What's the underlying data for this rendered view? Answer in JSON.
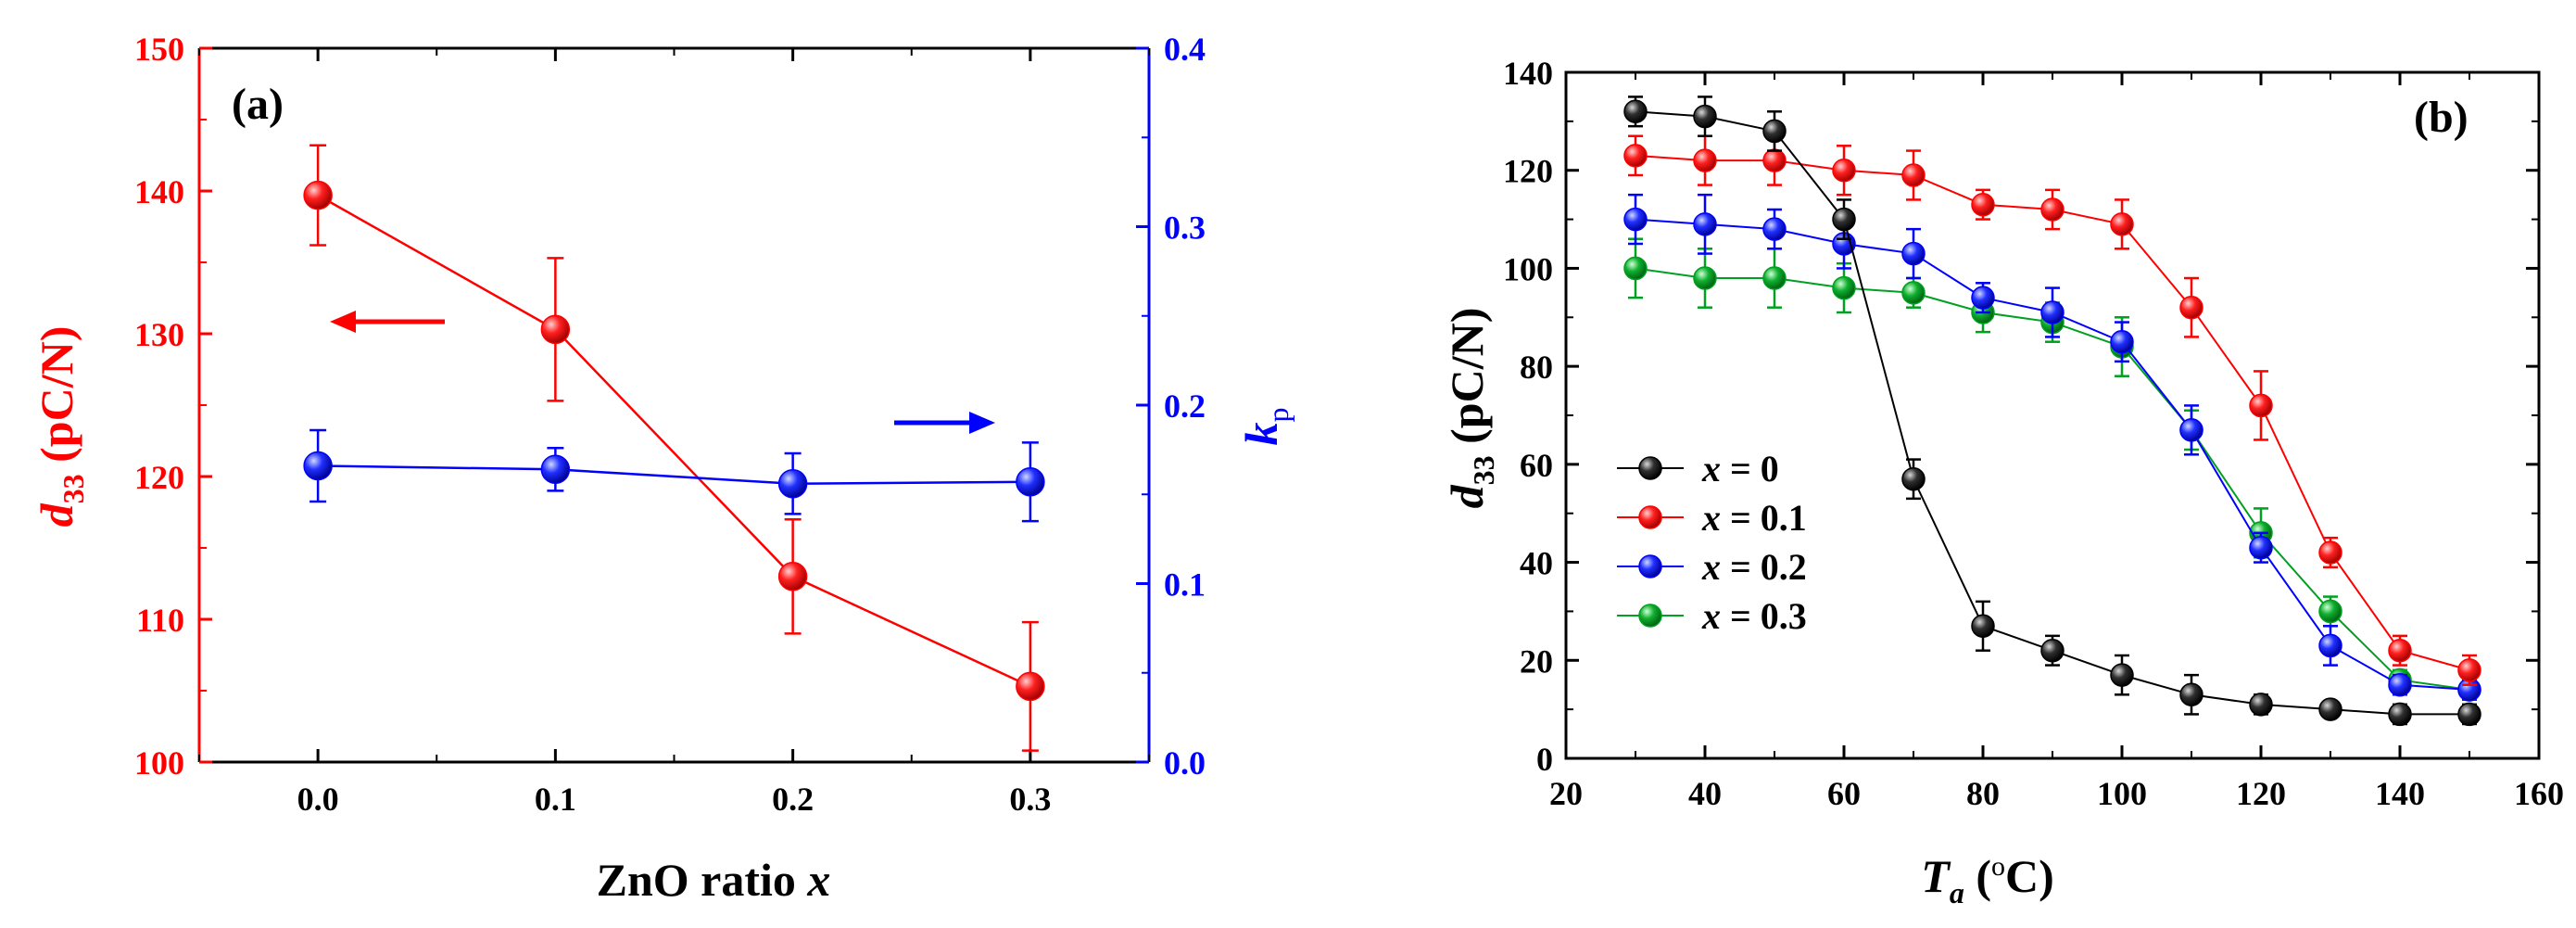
{
  "chart_data": [
    {
      "type": "line",
      "panel_label": "(a)",
      "xlabel": "ZnO ratio x",
      "xlabel_parts": [
        "ZnO ratio ",
        "x"
      ],
      "ylabel_left_parts": [
        "d",
        "33",
        " (pC/N)"
      ],
      "ylabel_right_parts": [
        "k",
        "p"
      ],
      "xlim": [
        -0.05,
        0.35
      ],
      "ylim_left": [
        100,
        150
      ],
      "ylim_right": [
        0.0,
        0.4
      ],
      "x_ticks": [
        "0.0",
        "0.1",
        "0.2",
        "0.3"
      ],
      "x_tick_values": [
        0.0,
        0.1,
        0.2,
        0.3
      ],
      "y_left_ticks": [
        "100",
        "110",
        "120",
        "130",
        "140",
        "150"
      ],
      "y_left_tick_values": [
        100,
        110,
        120,
        130,
        140,
        150
      ],
      "y_right_ticks": [
        "0.0",
        "0.1",
        "0.2",
        "0.3",
        "0.4"
      ],
      "y_right_tick_values": [
        0.0,
        0.1,
        0.2,
        0.3,
        0.4
      ],
      "grid": false,
      "series": [
        {
          "name": "d33",
          "axis": "left",
          "color": "#ff0000",
          "x": [
            0.0,
            0.1,
            0.2,
            0.3
          ],
          "values": [
            139.7,
            130.3,
            113.0,
            105.3
          ],
          "errors": [
            3.5,
            5.0,
            4.0,
            4.5
          ]
        },
        {
          "name": "kp",
          "axis": "right",
          "color": "#0000ff",
          "x": [
            0.0,
            0.1,
            0.2,
            0.3
          ],
          "values": [
            0.166,
            0.164,
            0.156,
            0.157
          ],
          "errors": [
            0.02,
            0.012,
            0.017,
            0.022
          ]
        }
      ],
      "annotations": [
        {
          "type": "arrow",
          "direction": "left",
          "color": "#ff0000",
          "x_from": 0.07,
          "x_to": 0.03,
          "y": 130,
          "axis": "left"
        },
        {
          "type": "arrow",
          "direction": "right",
          "color": "#0000ff",
          "x_from": 0.24,
          "x_to": 0.28,
          "y": 0.19,
          "axis": "right"
        }
      ]
    },
    {
      "type": "line",
      "panel_label": "(b)",
      "xlabel_parts": [
        "T",
        "a",
        " (",
        "o",
        "C)"
      ],
      "ylabel_parts": [
        "d",
        "33",
        " (pC/N)"
      ],
      "xlim": [
        20,
        160
      ],
      "ylim": [
        0,
        140
      ],
      "x_ticks": [
        "20",
        "40",
        "60",
        "80",
        "100",
        "120",
        "140",
        "160"
      ],
      "x_tick_values": [
        20,
        40,
        60,
        80,
        100,
        120,
        140,
        160
      ],
      "y_ticks": [
        "0",
        "20",
        "40",
        "60",
        "80",
        "100",
        "120",
        "140"
      ],
      "y_tick_values": [
        0,
        20,
        40,
        60,
        80,
        100,
        120,
        140
      ],
      "grid": false,
      "legend_position": "left-lower",
      "x": [
        30,
        40,
        50,
        60,
        70,
        80,
        90,
        100,
        110,
        120,
        130,
        140,
        150
      ],
      "series": [
        {
          "name": "x = 0",
          "legend_parts": [
            "x",
            " = 0"
          ],
          "color": "#000000",
          "values": [
            132,
            131,
            128,
            110,
            57,
            27,
            22,
            17,
            13,
            11,
            10,
            9,
            9
          ],
          "errors": [
            3,
            4,
            4,
            4,
            4,
            5,
            3,
            4,
            4,
            2,
            1,
            2,
            2
          ]
        },
        {
          "name": "x = 0.1",
          "legend_parts": [
            "x",
            " = 0.1"
          ],
          "color": "#ff0000",
          "values": [
            123,
            122,
            122,
            120,
            119,
            113,
            112,
            109,
            92,
            72,
            42,
            22,
            18
          ],
          "errors": [
            4,
            5,
            5,
            5,
            5,
            3,
            4,
            5,
            6,
            7,
            3,
            3,
            3
          ]
        },
        {
          "name": "x = 0.2",
          "legend_parts": [
            "x",
            " = 0.2"
          ],
          "color": "#0000ff",
          "values": [
            110,
            109,
            108,
            105,
            103,
            94,
            91,
            85,
            67,
            43,
            23,
            15,
            14
          ],
          "errors": [
            5,
            6,
            4,
            5,
            5,
            3,
            5,
            4,
            5,
            3,
            4,
            2,
            2
          ]
        },
        {
          "name": "x = 0.3",
          "legend_parts": [
            "x",
            " = 0.3"
          ],
          "color": "#00a020",
          "values": [
            100,
            98,
            98,
            96,
            95,
            91,
            89,
            84,
            67,
            46,
            30,
            16,
            14
          ],
          "errors": [
            6,
            6,
            6,
            5,
            3,
            4,
            4,
            6,
            4,
            5,
            3,
            2,
            2
          ]
        }
      ]
    }
  ]
}
